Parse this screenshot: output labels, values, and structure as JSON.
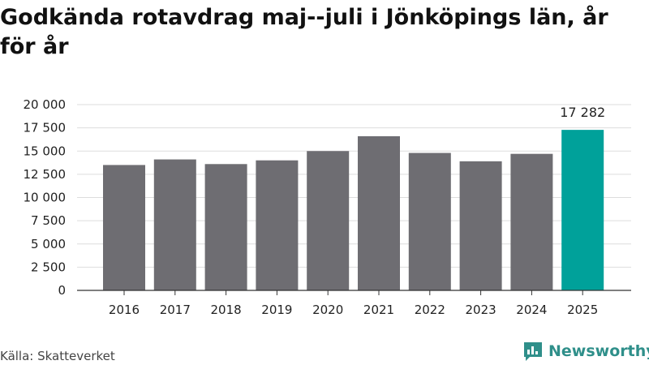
{
  "title": "Godkända rotavdrag maj--juli i Jönköpings län, år för år",
  "source": "Källa: Skatteverket",
  "brand": {
    "name": "Newsworthy",
    "icon": "newsworthy-logo-icon"
  },
  "colors": {
    "bar": "#6e6d72",
    "highlight": "#00a19a",
    "grid": "#dddddd",
    "axis": "#333333"
  },
  "chart_data": {
    "type": "bar",
    "title": "Godkända rotavdrag maj--juli i Jönköpings län, år för år",
    "xlabel": "",
    "ylabel": "",
    "categories": [
      "2016",
      "2017",
      "2018",
      "2019",
      "2020",
      "2021",
      "2022",
      "2023",
      "2024",
      "2025"
    ],
    "values": [
      13500,
      14100,
      13600,
      14000,
      15000,
      16600,
      14800,
      13900,
      14700,
      17282
    ],
    "highlight_index": 9,
    "data_labels": [
      {
        "index": 9,
        "text": "17 282"
      }
    ],
    "ylim": [
      0,
      20000
    ],
    "yticks": [
      0,
      2500,
      5000,
      7500,
      10000,
      12500,
      15000,
      17500,
      20000
    ],
    "ytick_labels": [
      "0",
      "2 500",
      "5 000",
      "7 500",
      "10 000",
      "12 500",
      "15 000",
      "17 500",
      "20 000"
    ],
    "grid": true,
    "legend": "none"
  }
}
